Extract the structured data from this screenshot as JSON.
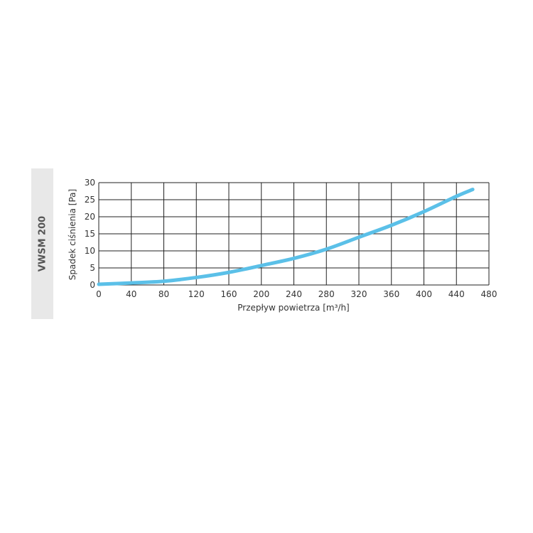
{
  "side_label": "VWSM 200",
  "chart_data": {
    "type": "line",
    "title": "",
    "xlabel": "Przepływ powietrza [m³/h]",
    "ylabel": "Spadek ciśnienia [Pa]",
    "xlim": [
      0,
      480
    ],
    "ylim": [
      0,
      30
    ],
    "xticks": [
      0,
      40,
      80,
      120,
      160,
      200,
      240,
      280,
      320,
      360,
      400,
      440,
      480
    ],
    "yticks": [
      0,
      5,
      10,
      15,
      20,
      25,
      30
    ],
    "grid": true,
    "series": [
      {
        "color": "#5bc0e8",
        "x": [
          0,
          40,
          80,
          120,
          160,
          200,
          240,
          280,
          320,
          360,
          400,
          440,
          460
        ],
        "y": [
          0.2,
          0.6,
          1.1,
          2.2,
          3.7,
          5.7,
          7.8,
          10.5,
          14.0,
          17.5,
          21.5,
          26.0,
          28.0
        ]
      }
    ]
  }
}
